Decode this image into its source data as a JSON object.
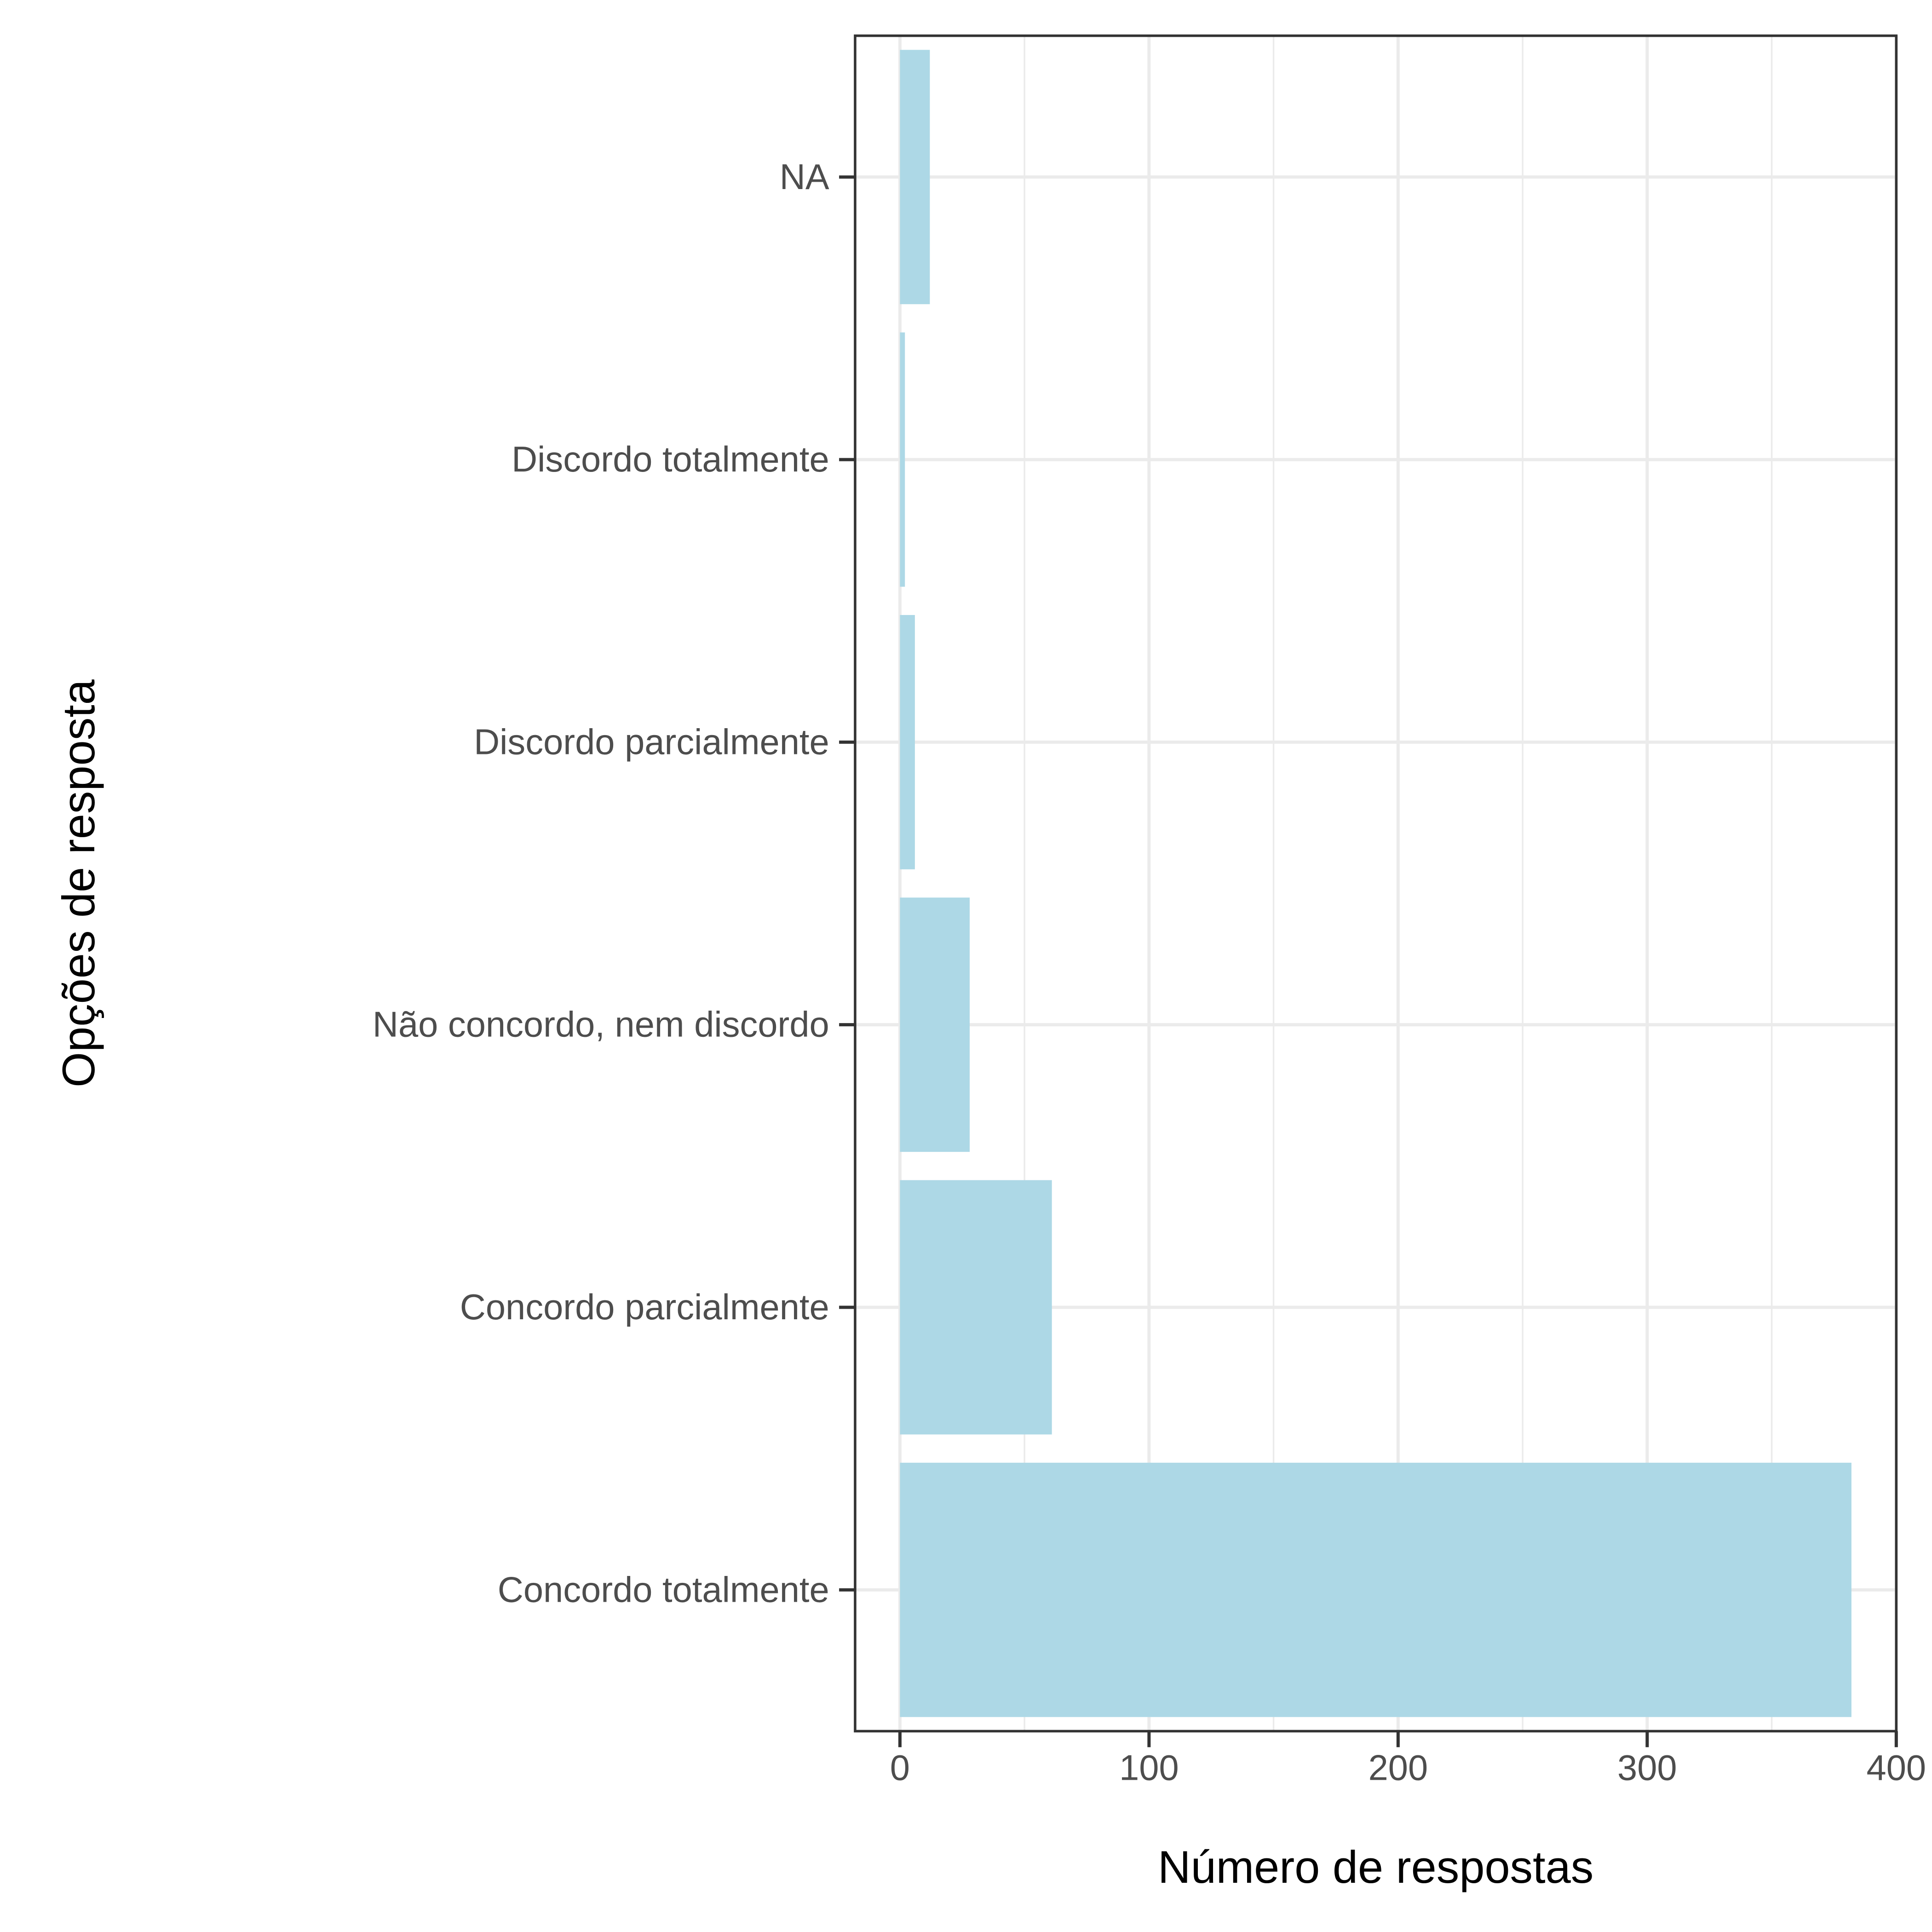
{
  "chart_data": {
    "type": "bar",
    "orientation": "horizontal",
    "categories": [
      "Concordo totalmente",
      "Concordo parcialmente",
      "Não concordo, nem discordo",
      "Discordo parcialmente",
      "Discordo totalmente",
      "NA"
    ],
    "values": [
      382,
      61,
      28,
      6,
      2,
      12
    ],
    "xlabel": "Número de respostas",
    "ylabel": "Opções de resposta",
    "xlim": [
      -18,
      400
    ],
    "x_ticks": [
      0,
      100,
      200,
      300,
      400
    ],
    "x_tick_labels": [
      "0",
      "100",
      "200",
      "300",
      "400"
    ],
    "grid": true,
    "colors": {
      "bar": "#add8e6",
      "grid": "#ebebeb",
      "panel_border": "#333333",
      "tick_label": "#4d4d4d",
      "axis_title": "#000000",
      "background": "#ffffff"
    }
  }
}
